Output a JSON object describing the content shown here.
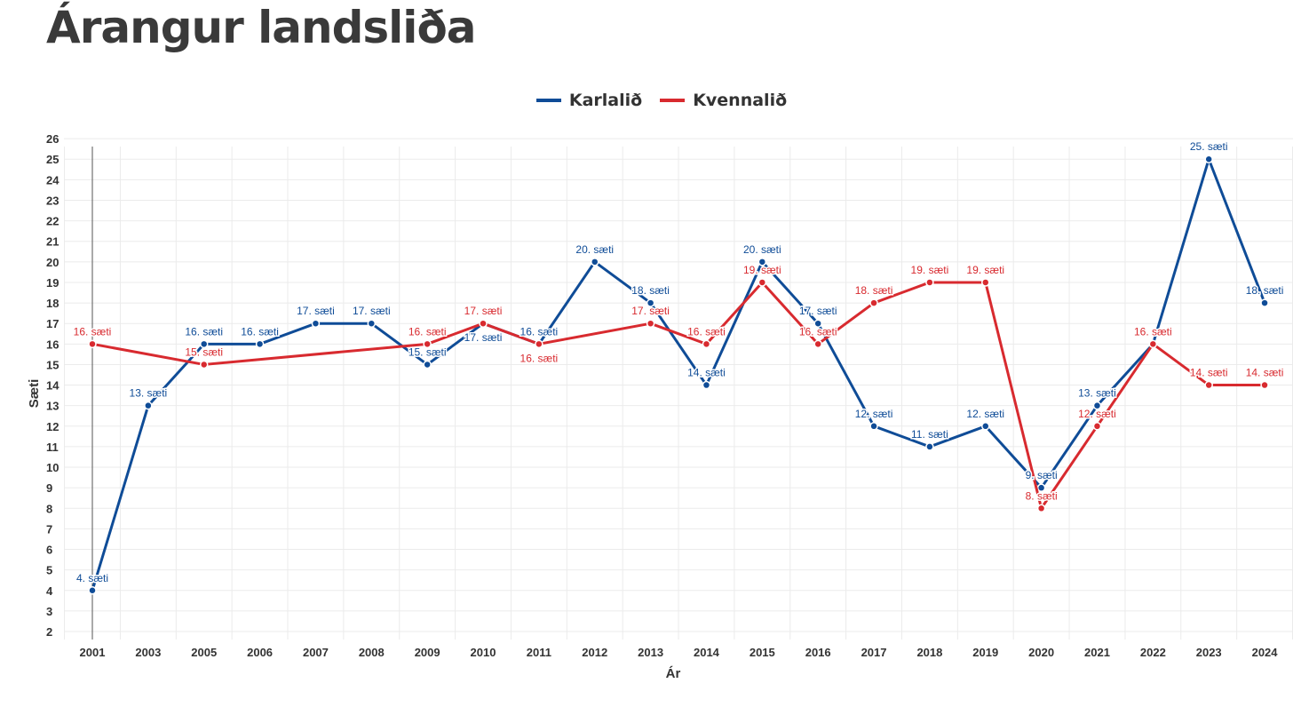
{
  "title": "Árangur landsliða",
  "legend": [
    {
      "name": "Karlalið",
      "color": "#0f4c97"
    },
    {
      "name": "Kvennalið",
      "color": "#d82a2f"
    }
  ],
  "chart_data": {
    "type": "line",
    "title": "Árangur landsliða",
    "xlabel": "Ár",
    "ylabel": "Sæti",
    "ylim": [
      2,
      26
    ],
    "yticks": [
      2,
      3,
      4,
      5,
      6,
      7,
      8,
      9,
      10,
      11,
      12,
      13,
      14,
      15,
      16,
      17,
      18,
      19,
      20,
      21,
      22,
      23,
      24,
      25,
      26
    ],
    "categories": [
      "2001",
      "2003",
      "2005",
      "2006",
      "2007",
      "2008",
      "2009",
      "2010",
      "2011",
      "2012",
      "2013",
      "2014",
      "2015",
      "2016",
      "2017",
      "2018",
      "2019",
      "2020",
      "2021",
      "2022",
      "2023",
      "2024"
    ],
    "grid": true,
    "label_suffix": ". sæti",
    "series": [
      {
        "name": "Karlalið",
        "color": "#0f4c97",
        "values": [
          4,
          13,
          16,
          16,
          17,
          17,
          15,
          17,
          16,
          20,
          18,
          14,
          20,
          17,
          12,
          11,
          12,
          9,
          13,
          16,
          25,
          18
        ],
        "labels": [
          "4. sæti",
          "13. sæti",
          "16. sæti",
          "16. sæti",
          "17. sæti",
          "17. sæti",
          "15. sæti",
          "17. sæti",
          "16. sæti",
          "20. sæti",
          "18. sæti",
          "14. sæti",
          "20. sæti",
          "17. sæti",
          "12. sæti",
          "11. sæti",
          "12. sæti",
          "9. sæti",
          "13. sæti",
          "16. sæti",
          "25. sæti",
          "18. sæti"
        ]
      },
      {
        "name": "Kvennalið",
        "color": "#d82a2f",
        "values": [
          16,
          null,
          15,
          null,
          null,
          null,
          16,
          17,
          16,
          null,
          17,
          16,
          19,
          16,
          18,
          19,
          19,
          8,
          12,
          16,
          14,
          14
        ],
        "labels": [
          "16. sæti",
          null,
          "15. sæti",
          null,
          null,
          null,
          "16. sæti",
          "17. sæti",
          "16. sæti",
          null,
          "17. sæti",
          "16. sæti",
          "19. sæti",
          "16. sæti",
          "18. sæti",
          "19. sæti",
          "19. sæti",
          "8. sæti",
          "12. sæti",
          "16. sæti",
          "14. sæti",
          "14. sæti"
        ]
      }
    ]
  }
}
